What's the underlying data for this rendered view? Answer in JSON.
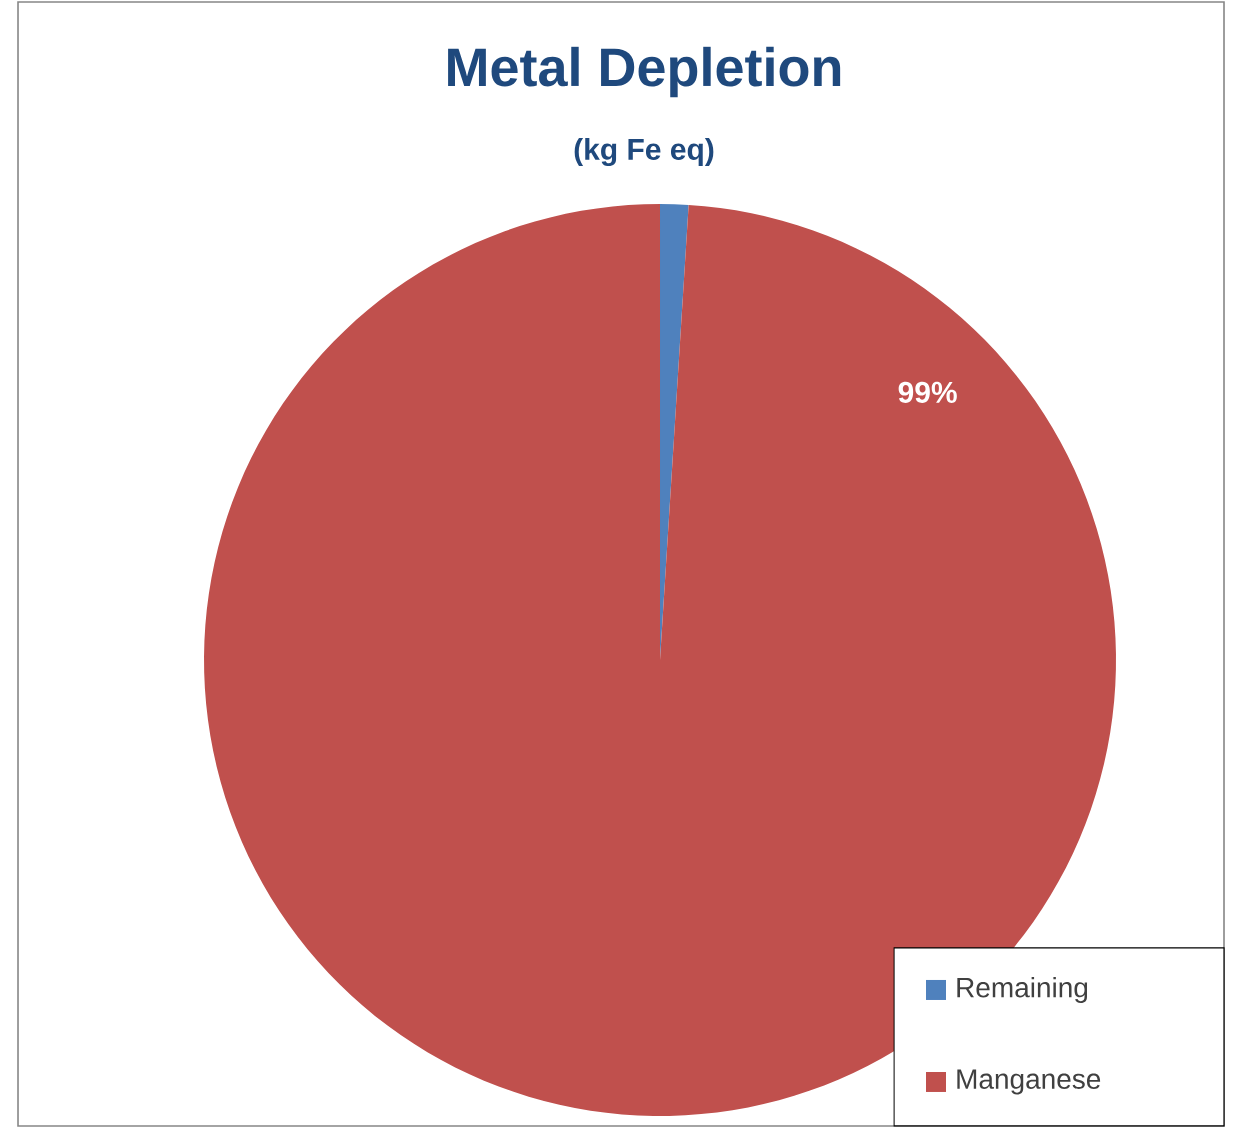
{
  "chart_data": {
    "type": "pie",
    "title": "Metal Depletion",
    "subtitle": "(kg Fe eq)",
    "categories": [
      "Remaining",
      "Manganese"
    ],
    "values": [
      1,
      99
    ],
    "colors": [
      "#4f81bd",
      "#c0504d"
    ],
    "value_labels": [
      null,
      "99%"
    ],
    "legend": "bottom right"
  }
}
